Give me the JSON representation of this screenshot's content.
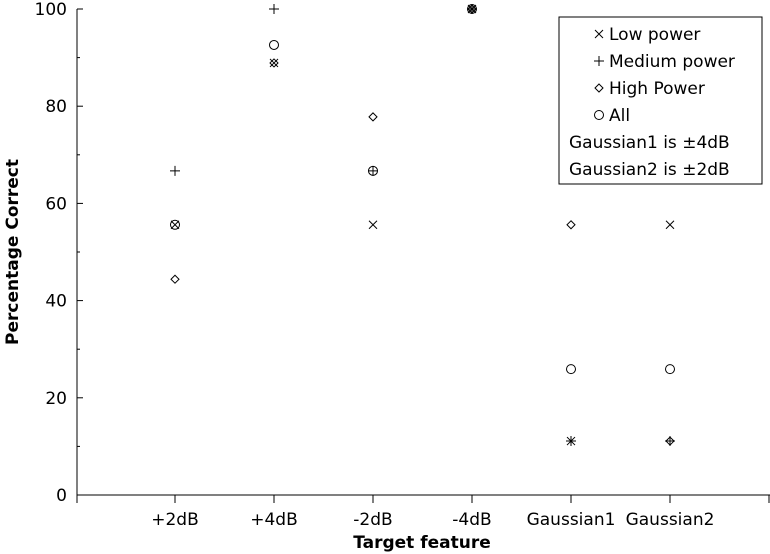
{
  "chart_data": {
    "type": "scatter",
    "xlabel": "Target feature",
    "ylabel": "Percentage Correct",
    "categories": [
      "+2dB",
      "+4dB",
      "-2dB",
      "-4dB",
      "Gaussian1",
      "Gaussian2"
    ],
    "ylim": [
      0,
      100
    ],
    "yticks": [
      "0",
      "20",
      "40",
      "60",
      "80",
      "100"
    ],
    "series": [
      {
        "name": "Low power",
        "marker": "x",
        "values": [
          55.6,
          88.9,
          55.6,
          100,
          11.1,
          55.6
        ]
      },
      {
        "name": "Medium power",
        "marker": "+",
        "values": [
          66.7,
          100,
          66.7,
          100,
          11.1,
          11.1
        ]
      },
      {
        "name": "High Power",
        "marker": "diamond",
        "values": [
          44.4,
          88.9,
          77.8,
          100,
          55.6,
          11.1
        ]
      },
      {
        "name": "All",
        "marker": "circle",
        "values": [
          55.6,
          92.6,
          66.7,
          100,
          25.9,
          25.9
        ]
      }
    ],
    "legend_notes": [
      "Gaussian1 is ±4dB",
      "Gaussian2 is ±2dB"
    ],
    "legend_position": "top-right",
    "grid": false
  }
}
